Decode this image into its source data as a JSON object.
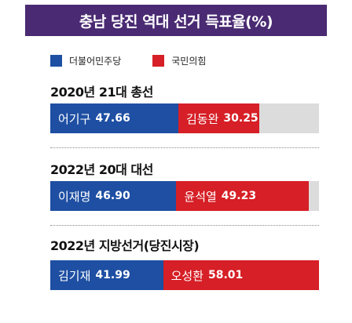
{
  "title": "충남 당진 역대 선거 득표율(%)",
  "legend": [
    {
      "label": "더불어민주당",
      "color": "#1e4fa3"
    },
    {
      "label": "국민의힘",
      "color": "#d61f26"
    }
  ],
  "chart_data": {
    "type": "bar",
    "orientation": "horizontal-stacked",
    "xlim": [
      0,
      100
    ],
    "grid": false,
    "legend_position": "top-left",
    "series": [
      {
        "name": "더불어민주당",
        "color": "#1e4fa3"
      },
      {
        "name": "국민의힘",
        "color": "#d61f26"
      }
    ],
    "categories": [
      {
        "label": "2020년 21대 총선",
        "bars": [
          {
            "candidate": "어기구",
            "value": 47.66,
            "display": "47.66"
          },
          {
            "candidate": "김동완",
            "value": 30.25,
            "display": "30.25"
          }
        ]
      },
      {
        "label": "2022년 20대 대선",
        "bars": [
          {
            "candidate": "이재명",
            "value": 46.9,
            "display": "46.90"
          },
          {
            "candidate": "윤석열",
            "value": 49.23,
            "display": "49.23"
          }
        ]
      },
      {
        "label": "2022년 지방선거(당진시장)",
        "bars": [
          {
            "candidate": "김기재",
            "value": 41.99,
            "display": "41.99"
          },
          {
            "candidate": "오성환",
            "value": 58.01,
            "display": "58.01"
          }
        ]
      }
    ]
  }
}
